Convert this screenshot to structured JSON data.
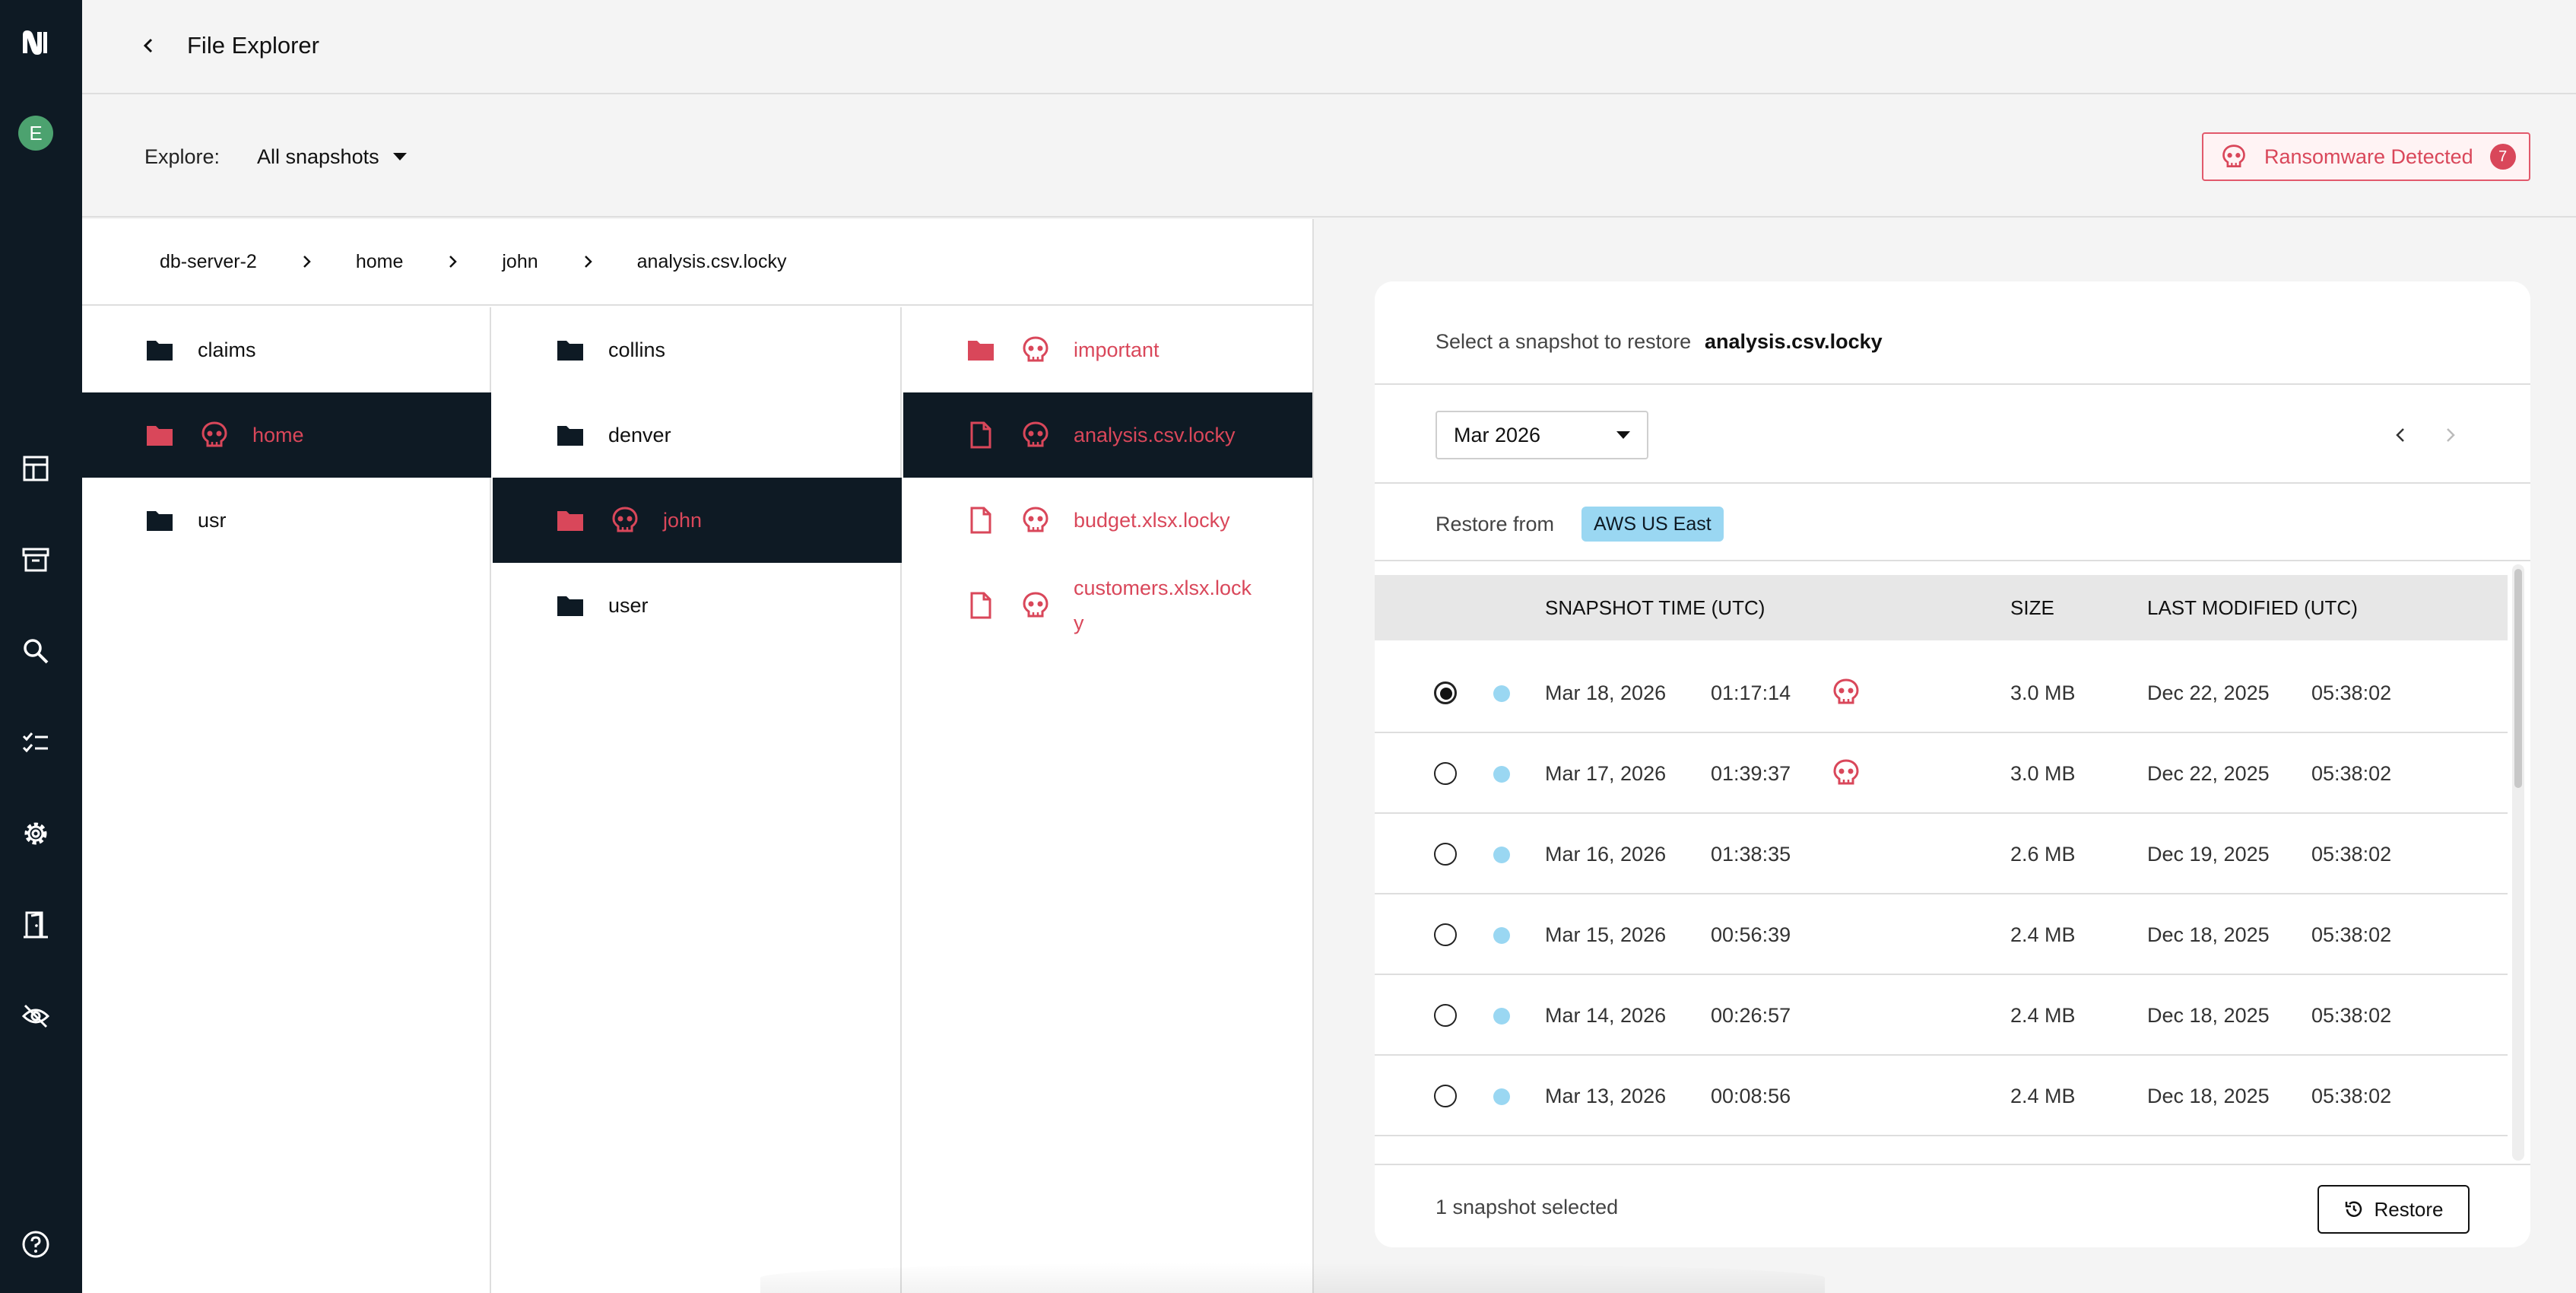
{
  "sidebar": {
    "avatar_initial": "E",
    "items": [
      "logo-icon",
      "dashboard-icon",
      "archive-icon",
      "search-icon",
      "checklist-icon",
      "gear-icon",
      "door-icon",
      "eye-off-icon",
      "help-icon"
    ]
  },
  "header": {
    "title": "File Explorer"
  },
  "explore": {
    "label": "Explore:",
    "selected": "All snapshots"
  },
  "alert": {
    "label": "Ransomware Detected",
    "count": "7",
    "color": "#d9475a"
  },
  "breadcrumb": [
    "db-server-2",
    "home",
    "john",
    "analysis.csv.locky"
  ],
  "columns": [
    [
      {
        "name": "claims",
        "type": "folder",
        "infected": false,
        "selected": false
      },
      {
        "name": "home",
        "type": "folder",
        "infected": true,
        "selected": true
      },
      {
        "name": "usr",
        "type": "folder",
        "infected": false,
        "selected": false
      }
    ],
    [
      {
        "name": "collins",
        "type": "folder",
        "infected": false,
        "selected": false
      },
      {
        "name": "denver",
        "type": "folder",
        "infected": false,
        "selected": false
      },
      {
        "name": "john",
        "type": "folder",
        "infected": true,
        "selected": true
      },
      {
        "name": "user",
        "type": "folder",
        "infected": false,
        "selected": false
      }
    ],
    [
      {
        "name": "important",
        "type": "folder",
        "infected": true,
        "selected": false
      },
      {
        "name": "analysis.csv.locky",
        "type": "file",
        "infected": true,
        "selected": true
      },
      {
        "name": "budget.xlsx.locky",
        "type": "file",
        "infected": true,
        "selected": false
      },
      {
        "name": "customers.xlsx.locky",
        "type": "file",
        "infected": true,
        "selected": false
      }
    ]
  ],
  "panel": {
    "prompt": "Select a snapshot to restore",
    "filename": "analysis.csv.locky",
    "month": "Mar 2026",
    "restore_from_label": "Restore from",
    "restore_from_value": "AWS US East",
    "headers": {
      "snapshot_time": "SNAPSHOT TIME (UTC)",
      "size": "SIZE",
      "last_modified": "LAST MODIFIED (UTC)"
    },
    "rows": [
      {
        "date": "Mar 18, 2026",
        "time": "01:17:14",
        "infected": true,
        "size": "3.0 MB",
        "mod_date": "Dec 22, 2025",
        "mod_time": "05:38:02",
        "selected": true
      },
      {
        "date": "Mar 17, 2026",
        "time": "01:39:37",
        "infected": true,
        "size": "3.0 MB",
        "mod_date": "Dec 22, 2025",
        "mod_time": "05:38:02",
        "selected": false
      },
      {
        "date": "Mar 16, 2026",
        "time": "01:38:35",
        "infected": false,
        "size": "2.6 MB",
        "mod_date": "Dec 19, 2025",
        "mod_time": "05:38:02",
        "selected": false
      },
      {
        "date": "Mar 15, 2026",
        "time": "00:56:39",
        "infected": false,
        "size": "2.4 MB",
        "mod_date": "Dec 18, 2025",
        "mod_time": "05:38:02",
        "selected": false
      },
      {
        "date": "Mar 14, 2026",
        "time": "00:26:57",
        "infected": false,
        "size": "2.4 MB",
        "mod_date": "Dec 18, 2025",
        "mod_time": "05:38:02",
        "selected": false
      },
      {
        "date": "Mar 13, 2026",
        "time": "00:08:56",
        "infected": false,
        "size": "2.4 MB",
        "mod_date": "Dec 18, 2025",
        "mod_time": "05:38:02",
        "selected": false
      }
    ],
    "selected_count_text": "1 snapshot selected",
    "restore_button": "Restore"
  }
}
